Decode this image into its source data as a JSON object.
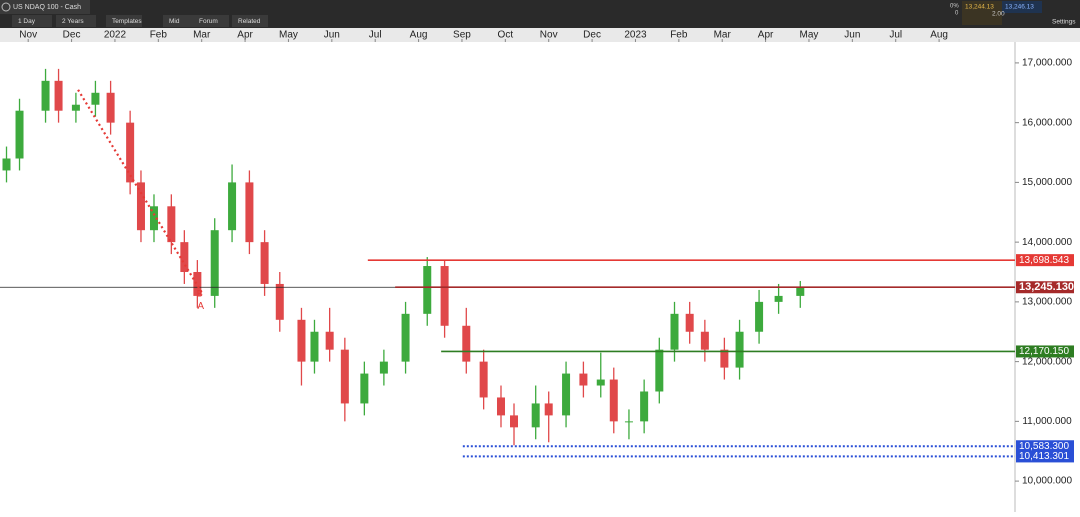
{
  "toolbar": {
    "instrument": "US NDAQ 100 - Cash",
    "buttons": [
      "1 Day",
      "2 Years",
      "Templates",
      "Mid",
      "Forum",
      "Related"
    ],
    "change": "0%",
    "change_points": "0",
    "bid": "13,244.13",
    "ask": "13,246.13",
    "spread": "2.00",
    "settings": "Settings"
  },
  "chart_data": {
    "type": "candlestick",
    "xlim": [
      -0.65,
      22.75
    ],
    "ylim": [
      9600,
      17350
    ],
    "xticks": [
      {
        "value": 0,
        "label": "Nov"
      },
      {
        "value": 1,
        "label": "Dec"
      },
      {
        "value": 2,
        "label": "2022"
      },
      {
        "value": 3,
        "label": "Feb"
      },
      {
        "value": 4,
        "label": "Mar"
      },
      {
        "value": 5,
        "label": "Apr"
      },
      {
        "value": 6,
        "label": "May"
      },
      {
        "value": 7,
        "label": "Jun"
      },
      {
        "value": 8,
        "label": "Jul"
      },
      {
        "value": 9,
        "label": "Aug"
      },
      {
        "value": 10,
        "label": "Sep"
      },
      {
        "value": 11,
        "label": "Oct"
      },
      {
        "value": 12,
        "label": "Nov"
      },
      {
        "value": 13,
        "label": "Dec"
      },
      {
        "value": 14,
        "label": "2023"
      },
      {
        "value": 15,
        "label": "Feb"
      },
      {
        "value": 16,
        "label": "Mar"
      },
      {
        "value": 17,
        "label": "Apr"
      },
      {
        "value": 18,
        "label": "May"
      },
      {
        "value": 19,
        "label": "Jun"
      },
      {
        "value": 20,
        "label": "Jul"
      },
      {
        "value": 21,
        "label": "Aug"
      }
    ],
    "yticks": [
      {
        "value": 10000,
        "label": "10,000.000"
      },
      {
        "value": 11000,
        "label": "11,000.000"
      },
      {
        "value": 12000,
        "label": "12,000.000"
      },
      {
        "value": 13000,
        "label": "13,000.000"
      },
      {
        "value": 14000,
        "label": "14,000.000"
      },
      {
        "value": 15000,
        "label": "15,000.000"
      },
      {
        "value": 16000,
        "label": "16,000.000"
      },
      {
        "value": 17000,
        "label": "17,000.000"
      }
    ],
    "up_color": "#3daa3d",
    "down_color": "#e0484a",
    "x": [
      -0.5,
      -0.2,
      0.4,
      0.7,
      1.1,
      1.55,
      1.9,
      2.35,
      2.6,
      2.9,
      3.3,
      3.6,
      3.9,
      4.3,
      4.7,
      5.1,
      5.45,
      5.8,
      6.3,
      6.6,
      6.95,
      7.3,
      7.75,
      8.2,
      8.7,
      9.2,
      9.6,
      10.1,
      10.5,
      10.9,
      11.2,
      11.7,
      12.0,
      12.4,
      12.8,
      13.2,
      13.5,
      13.85,
      14.2,
      14.55,
      14.9,
      15.25,
      15.6,
      16.05,
      16.4,
      16.85,
      17.3,
      17.8
    ],
    "open": [
      15200,
      15400,
      16200,
      16700,
      16200,
      16300,
      16500,
      16000,
      15000,
      14200,
      14600,
      14000,
      13500,
      13100,
      14200,
      15000,
      14000,
      13300,
      12700,
      12000,
      12500,
      12200,
      11300,
      11800,
      12000,
      12800,
      13600,
      12600,
      12000,
      11400,
      11100,
      10900,
      11300,
      11100,
      11800,
      11600,
      11700,
      11000,
      11000,
      11500,
      12200,
      12800,
      12500,
      12200,
      11900,
      12500,
      13000,
      13100
    ],
    "high": [
      15600,
      16400,
      16900,
      16900,
      16500,
      16700,
      16700,
      16200,
      15200,
      14800,
      14800,
      14200,
      13700,
      14400,
      15300,
      15200,
      14200,
      13500,
      12900,
      12700,
      12900,
      12400,
      12000,
      12200,
      13000,
      13750,
      13700,
      12900,
      12200,
      11600,
      11300,
      11600,
      11500,
      12000,
      12000,
      12150,
      11900,
      11200,
      11700,
      12400,
      13000,
      13000,
      12700,
      12400,
      12700,
      13200,
      13300,
      13350
    ],
    "low": [
      15000,
      15200,
      16000,
      16000,
      16000,
      16100,
      15800,
      14800,
      14000,
      14000,
      13800,
      13300,
      12900,
      12900,
      14000,
      13800,
      13100,
      12500,
      11600,
      11800,
      12000,
      11000,
      11100,
      11600,
      11800,
      12600,
      12400,
      11800,
      11200,
      10900,
      10600,
      10700,
      10650,
      10900,
      11400,
      11400,
      10800,
      10700,
      10800,
      11300,
      12000,
      12300,
      12000,
      11700,
      11700,
      12300,
      12800,
      12900
    ],
    "close": [
      15400,
      16200,
      16700,
      16200,
      16300,
      16500,
      16000,
      15000,
      14200,
      14600,
      14000,
      13500,
      13100,
      14200,
      15000,
      14000,
      13300,
      12700,
      12000,
      12500,
      12200,
      11300,
      11800,
      12000,
      12800,
      13600,
      12600,
      12000,
      11400,
      11100,
      10900,
      11300,
      11100,
      11800,
      11600,
      11700,
      11000,
      11000,
      11500,
      12200,
      12800,
      12500,
      12200,
      11900,
      12500,
      13000,
      13100,
      13250
    ],
    "levels": [
      {
        "value": 13698.543,
        "label": "13,698.543",
        "color": "#e53935",
        "from": 7.83,
        "style": "solid"
      },
      {
        "value": 13245.13,
        "label": "13,245.130",
        "color": "#a52a2a",
        "from": 8.46,
        "style": "solid"
      },
      {
        "value": 12170.15,
        "label": "12,170.150",
        "color": "#2e7d22",
        "from": 9.52,
        "style": "solid"
      },
      {
        "value": 10583.3,
        "label": "10,583.300",
        "color": "#2a4fd6",
        "from": 10.02,
        "style": "dotted"
      },
      {
        "value": 10413.301,
        "label": "10,413.301",
        "color": "#2a4fd6",
        "from": 10.02,
        "style": "dotted"
      }
    ],
    "trendline": {
      "x": [
        1.15,
        4.0
      ],
      "y": [
        16550,
        13160
      ],
      "color": "#e53935",
      "labels": [
        "B",
        "A"
      ]
    }
  }
}
